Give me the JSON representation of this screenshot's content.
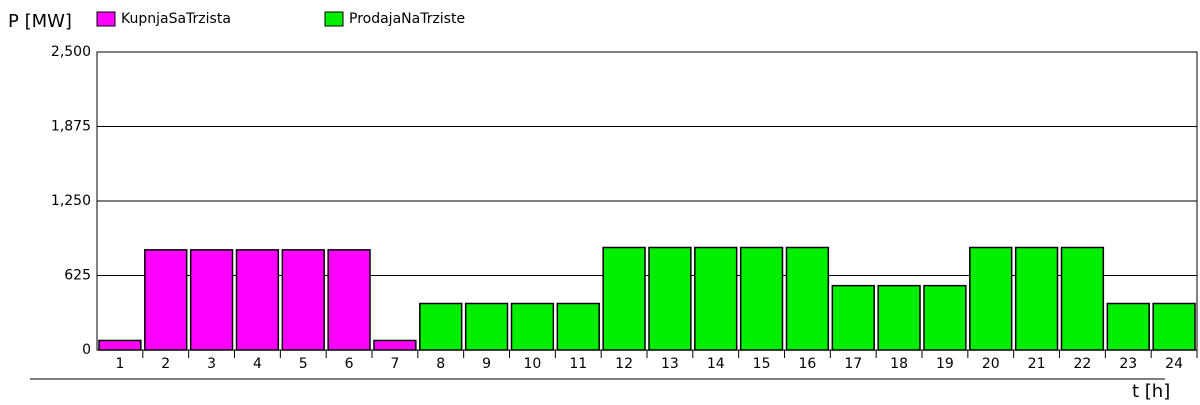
{
  "chart_data": {
    "type": "bar",
    "ylabel": "P [MW]",
    "xlabel": "t [h]",
    "categories": [
      "1",
      "2",
      "3",
      "4",
      "5",
      "6",
      "7",
      "8",
      "9",
      "10",
      "11",
      "12",
      "13",
      "14",
      "15",
      "16",
      "17",
      "18",
      "19",
      "20",
      "21",
      "22",
      "23",
      "24"
    ],
    "series": [
      {
        "name": "KupnjaSaTrzista",
        "color": "#ff00ff",
        "values": [
          80,
          840,
          840,
          840,
          840,
          840,
          80,
          null,
          null,
          null,
          null,
          null,
          null,
          null,
          null,
          null,
          null,
          null,
          null,
          null,
          null,
          null,
          null,
          null
        ]
      },
      {
        "name": "ProdajaNaTrziste",
        "color": "#00ee00",
        "values": [
          null,
          null,
          null,
          null,
          null,
          null,
          null,
          390,
          390,
          390,
          390,
          860,
          860,
          860,
          860,
          860,
          540,
          540,
          540,
          860,
          860,
          860,
          390,
          390
        ]
      }
    ],
    "ylim": [
      0,
      2500
    ],
    "yticks": [
      0,
      625,
      {
        "value": 1250,
        "label": "1,250"
      },
      {
        "value": 1875,
        "label": "1,875"
      },
      {
        "value": 2500,
        "label": "2,500"
      }
    ],
    "grid": true
  }
}
